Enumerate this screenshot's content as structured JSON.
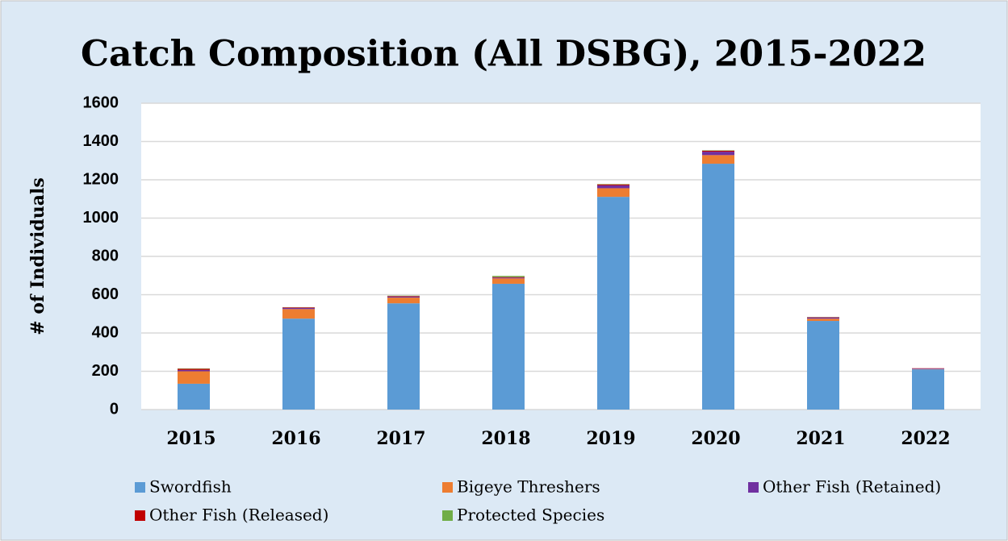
{
  "chart_data": {
    "type": "stacked_bar",
    "title": "Catch Composition (All DSBG), 2015-2022",
    "y_label": "# of Individuals",
    "categories": [
      "2015",
      "2016",
      "2017",
      "2018",
      "2019",
      "2020",
      "2021",
      "2022"
    ],
    "series": [
      {
        "name": "Swordfish",
        "color": "#5b9bd5",
        "values": [
          135,
          475,
          555,
          657,
          1111,
          1284,
          463,
          210
        ]
      },
      {
        "name": "Bigeye Threshers",
        "color": "#ed7d31",
        "values": [
          65,
          50,
          30,
          28,
          45,
          45,
          12,
          2
        ]
      },
      {
        "name": "Other Fish (Retained)",
        "color": "#7030a0",
        "values": [
          7,
          6,
          5,
          4,
          15,
          18,
          6,
          3
        ]
      },
      {
        "name": "Other Fish (Released)",
        "color": "#c00000",
        "values": [
          6,
          3,
          3,
          3,
          5,
          5,
          2,
          1
        ]
      },
      {
        "name": "Protected Species",
        "color": "#70ad47",
        "values": [
          2,
          1,
          2,
          6,
          2,
          2,
          1,
          0
        ]
      }
    ],
    "ylim": [
      0,
      1600
    ],
    "yticks": [
      0,
      200,
      400,
      600,
      800,
      1000,
      1200,
      1400,
      1600
    ],
    "grid": true,
    "legend": "bottom"
  }
}
